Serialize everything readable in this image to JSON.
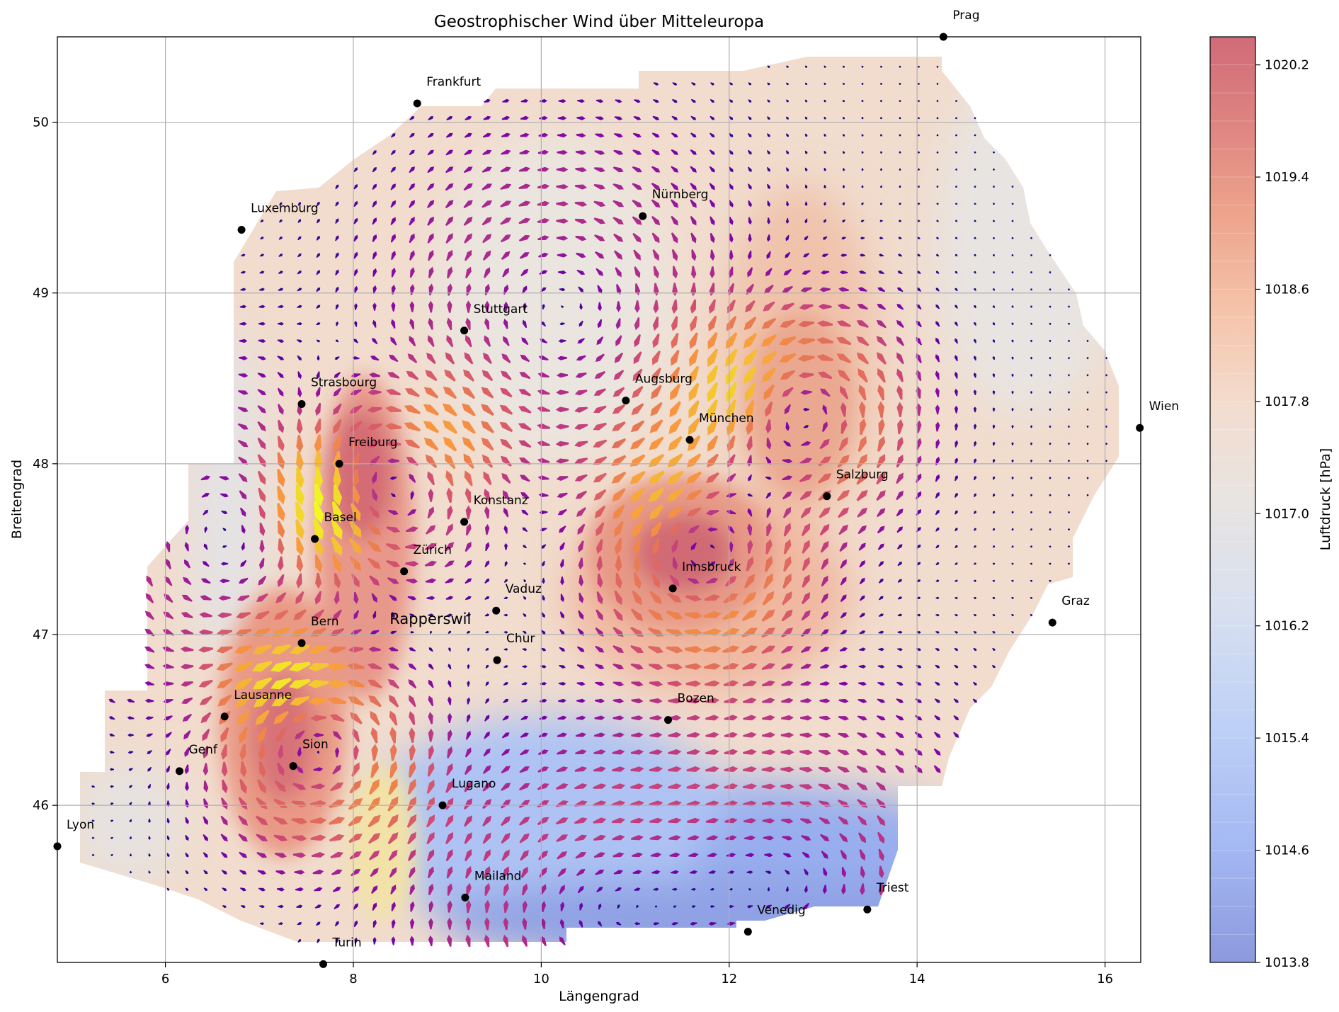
{
  "chart_data": {
    "type": "contour",
    "title": "Geostrophischer Wind über Mitteleuropa",
    "xlabel": "Längengrad",
    "ylabel": "Breitengrad",
    "xlim": [
      4.85,
      16.38
    ],
    "ylim": [
      45.08,
      50.5
    ],
    "xticks": [
      6,
      8,
      10,
      12,
      14,
      16
    ],
    "yticks": [
      46,
      47,
      48,
      49,
      50
    ],
    "grid": true,
    "colorbar": {
      "label": "Luftdruck [hPa]",
      "min": 1013.8,
      "max": 1020.4,
      "ticks": [
        1013.8,
        1014.6,
        1015.4,
        1016.2,
        1017.0,
        1017.8,
        1018.6,
        1019.4,
        1020.2
      ],
      "colormap": "coolwarm",
      "colors": [
        "#6f83d6",
        "#9bb5f4",
        "#c5d6f2",
        "#e5e3e0",
        "#f3cdb6",
        "#ec9a7f",
        "#c85a62"
      ]
    },
    "pressure_centers": [
      {
        "name": "high",
        "lon": 8.3,
        "lat": 47.85,
        "value": 1020.3
      },
      {
        "name": "high",
        "lon": 7.6,
        "lat": 46.35,
        "value": 1020.0
      },
      {
        "name": "high",
        "lon": 11.7,
        "lat": 47.45,
        "value": 1020.1
      },
      {
        "name": "high",
        "lon": 12.8,
        "lat": 48.3,
        "value": 1019.2
      },
      {
        "name": "low",
        "lon": 10.2,
        "lat": 48.9,
        "value": 1017.3
      },
      {
        "name": "low",
        "lon": 6.8,
        "lat": 47.6,
        "value": 1017.0
      },
      {
        "name": "low",
        "lon": 10.5,
        "lat": 45.35,
        "value": 1014.0
      },
      {
        "name": "low",
        "lon": 12.8,
        "lat": 45.55,
        "value": 1014.1
      }
    ],
    "wind_vectors": "geostrophic wind arrows colored by speed (plasma colormap, purple slow to yellow fast)",
    "cities": [
      {
        "name": "Prag",
        "lon": 14.28,
        "lat": 50.5
      },
      {
        "name": "Frankfurt",
        "lon": 8.68,
        "lat": 50.11
      },
      {
        "name": "Luxemburg",
        "lon": 6.81,
        "lat": 49.37
      },
      {
        "name": "Nürnberg",
        "lon": 11.08,
        "lat": 49.45
      },
      {
        "name": "Stuttgart",
        "lon": 9.18,
        "lat": 48.78
      },
      {
        "name": "Augsburg",
        "lon": 10.9,
        "lat": 48.37
      },
      {
        "name": "Strasbourg",
        "lon": 7.45,
        "lat": 48.35
      },
      {
        "name": "Wien",
        "lon": 16.37,
        "lat": 48.21
      },
      {
        "name": "München",
        "lon": 11.58,
        "lat": 48.14
      },
      {
        "name": "Freiburg",
        "lon": 7.85,
        "lat": 48.0
      },
      {
        "name": "Salzburg",
        "lon": 13.04,
        "lat": 47.81
      },
      {
        "name": "Konstanz",
        "lon": 9.18,
        "lat": 47.66
      },
      {
        "name": "Basel",
        "lon": 7.59,
        "lat": 47.56
      },
      {
        "name": "Zürich",
        "lon": 8.54,
        "lat": 47.37
      },
      {
        "name": "Innsbruck",
        "lon": 11.4,
        "lat": 47.27
      },
      {
        "name": "Vaduz",
        "lon": 9.52,
        "lat": 47.14
      },
      {
        "name": "Graz",
        "lon": 15.44,
        "lat": 47.07
      },
      {
        "name": "Bern",
        "lon": 7.45,
        "lat": 46.95
      },
      {
        "name": "Chur",
        "lon": 9.53,
        "lat": 46.85
      },
      {
        "name": "Lausanne",
        "lon": 6.63,
        "lat": 46.52
      },
      {
        "name": "Bozen",
        "lon": 11.35,
        "lat": 46.5
      },
      {
        "name": "Sion",
        "lon": 7.36,
        "lat": 46.23
      },
      {
        "name": "Genf",
        "lon": 6.15,
        "lat": 46.2
      },
      {
        "name": "Lugano",
        "lon": 8.95,
        "lat": 46.0
      },
      {
        "name": "Lyon",
        "lon": 4.85,
        "lat": 45.76
      },
      {
        "name": "Mailand",
        "lon": 9.19,
        "lat": 45.46
      },
      {
        "name": "Triest",
        "lon": 13.47,
        "lat": 45.39
      },
      {
        "name": "Venedig",
        "lon": 12.2,
        "lat": 45.26
      },
      {
        "name": "Turin",
        "lon": 7.68,
        "lat": 45.07
      }
    ],
    "highlight": {
      "name": "Rapperswil",
      "lon": 8.82,
      "lat": 47.22
    }
  }
}
